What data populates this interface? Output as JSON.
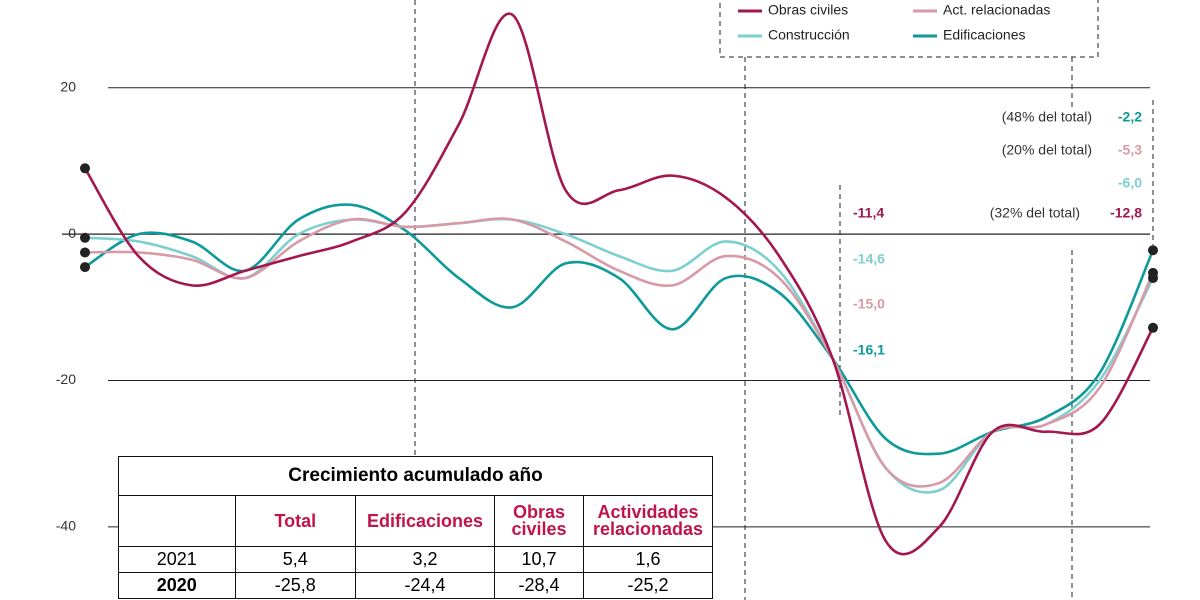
{
  "chart_data": {
    "type": "line",
    "categories": [
      null,
      null,
      null,
      null,
      null,
      null,
      null,
      null,
      null,
      null,
      null,
      null,
      null,
      null,
      null,
      null,
      null,
      null,
      null,
      null,
      null
    ],
    "ylim": [
      -50,
      32
    ],
    "yticks": [
      20,
      0,
      -20,
      -40
    ],
    "grid": true,
    "series": [
      {
        "name": "Obras civiles",
        "color": "#a3174f",
        "values": [
          9,
          -3,
          -7,
          -5,
          -3,
          -1,
          3,
          15,
          30,
          6,
          6,
          8,
          5,
          -3,
          -17,
          -42,
          -40,
          -27,
          -27,
          -26,
          -12.8
        ]
      },
      {
        "name": "Act. relacionadas",
        "color": "#d99aa8",
        "values": [
          -2.5,
          -2.5,
          -3.5,
          -6,
          -1,
          2,
          1,
          1.5,
          2,
          -1,
          -5,
          -7,
          -3,
          -6,
          -17,
          -32,
          -34,
          -27,
          -26,
          -21,
          -5.3
        ]
      },
      {
        "name": "Construcción",
        "color": "#7ecfcf",
        "values": [
          -0.5,
          -1,
          -3,
          -6,
          0,
          2,
          1,
          1.5,
          2,
          0,
          -3,
          -5,
          -1,
          -5,
          -17,
          -32,
          -35,
          -27,
          -26,
          -20,
          -6.0
        ]
      },
      {
        "name": "Edificaciones",
        "color": "#0e9a9a",
        "values": [
          -4.5,
          0,
          -1,
          -5,
          2,
          4,
          0.5,
          -6,
          -10,
          -4,
          -6,
          -13,
          -6,
          -8,
          -17,
          -28,
          -30,
          -27,
          -25,
          -19,
          -2.2
        ]
      }
    ],
    "annotations": [
      {
        "text": "(48% del total)",
        "color": "#333333"
      },
      {
        "text": "-2,2",
        "color": "#0e9a9a"
      },
      {
        "text": "(20% del total)",
        "color": "#333333"
      },
      {
        "text": "-5,3",
        "color": "#d99aa8"
      },
      {
        "text": "-6,0",
        "color": "#7ecfcf"
      },
      {
        "text": "(32% del total)",
        "color": "#333333"
      },
      {
        "text": "-12,8",
        "color": "#a3174f"
      },
      {
        "text": "-11,4",
        "color": "#a3174f"
      },
      {
        "text": "-14,6",
        "color": "#7ecfcf"
      },
      {
        "text": "-15,0",
        "color": "#d99aa8"
      },
      {
        "text": "-16,1",
        "color": "#0e9a9a"
      }
    ]
  },
  "table": {
    "title": "Crecimiento acumulado año",
    "header": [
      "",
      "Total",
      "Edificaciones",
      "Obras civiles",
      "Actividades relacionadas"
    ],
    "rows": [
      [
        "2021",
        "5,4",
        "3,2",
        "10,7",
        "1,6"
      ],
      [
        "2020",
        "-25,8",
        "-24,4",
        "-28,4",
        "-25,2"
      ]
    ]
  }
}
